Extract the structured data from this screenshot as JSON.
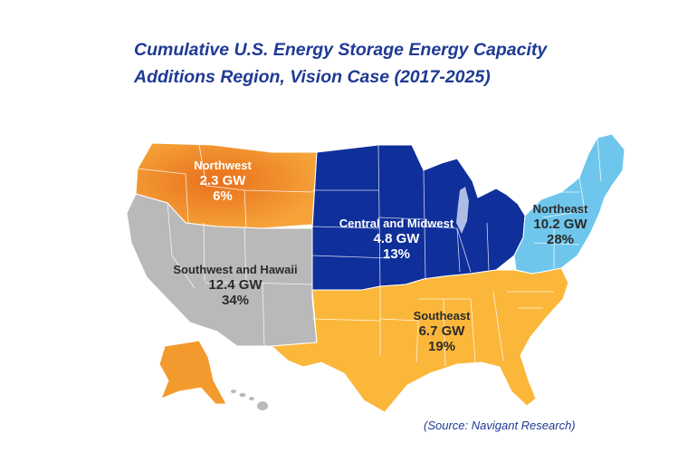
{
  "title": {
    "line1": "Cumulative U.S. Energy Storage Energy Capacity",
    "line2": "Additions Region, Vision Case (2017-2025)"
  },
  "colors": {
    "northwest": "#f39a2e",
    "southwest": "#b9b9b9",
    "central": "#0f2f9a",
    "northeast": "#6fc6ec",
    "southeast": "#fbb73a",
    "title": "#1f3a93"
  },
  "regions": [
    {
      "name": "Northwest",
      "value": "2.3 GW",
      "share": "6%"
    },
    {
      "name": "Southwest and Hawaii",
      "value": "12.4 GW",
      "share": "34%"
    },
    {
      "name": "Central and Midwest",
      "value": "4.8 GW",
      "share": "13%"
    },
    {
      "name": "Northeast",
      "value": "10.2 GW",
      "share": "28%"
    },
    {
      "name": "Southeast",
      "value": "6.7 GW",
      "share": "19%"
    }
  ],
  "source": "(Source: Navigant Research)"
}
